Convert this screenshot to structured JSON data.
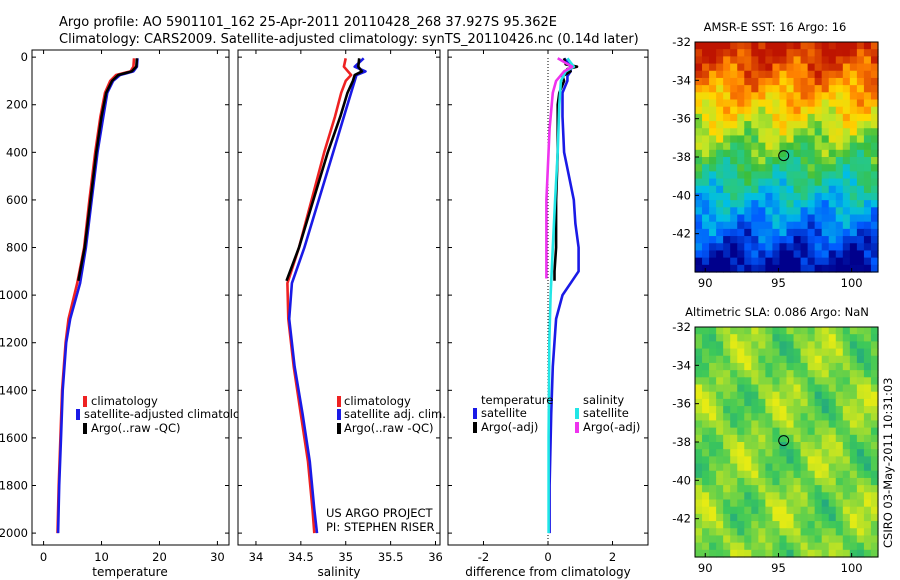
{
  "header": {
    "line1": "Argo profile: AO 5901101_162 25-Apr-2011 20110428_268 37.927S 95.362E",
    "line2": "Climatology: CARS2009. Satellite-adjusted climatology: synTS_20110426.nc (0.14d later)"
  },
  "footer": {
    "project": "US ARGO PROJECT",
    "pi": "PI: STEPHEN RISER",
    "stamp": "CSIRO 03-May-2011 10:31:03"
  },
  "colors": {
    "climatology": "#ee2222",
    "satellite": "#1a1ae6",
    "argo": "#000000",
    "salinity_sat": "#22e6e6",
    "salinity_argo": "#ee33ee"
  },
  "chart_data": [
    {
      "type": "line",
      "xlabel": "temperature",
      "ylabel": "",
      "xlim": [
        -2,
        32
      ],
      "ylim": [
        2050,
        -30
      ],
      "xticks": [
        0,
        10,
        20,
        30
      ],
      "yticks": [
        0,
        200,
        400,
        600,
        800,
        1000,
        1200,
        1400,
        1600,
        1800,
        2000
      ],
      "legend": {
        "placement": "lower-middle",
        "entries": [
          "climatology",
          "satellite-adjusted climatology",
          "Argo(..raw -QC)"
        ]
      },
      "series": [
        {
          "name": "climatology",
          "color": "#ee2222",
          "depth": [
            5,
            40,
            60,
            75,
            100,
            150,
            250,
            400,
            600,
            800,
            950,
            1100,
            1200,
            1400,
            1600,
            1800,
            2000
          ],
          "values": [
            15.6,
            15.5,
            15.0,
            12.5,
            11.5,
            10.6,
            9.8,
            8.9,
            7.9,
            7.0,
            5.8,
            4.3,
            3.8,
            3.2,
            2.9,
            2.6,
            2.4
          ]
        },
        {
          "name": "satellite-adjusted climatology",
          "color": "#1a1ae6",
          "depth": [
            5,
            40,
            60,
            75,
            100,
            150,
            250,
            400,
            600,
            800,
            950,
            1100,
            1200,
            1400,
            1600,
            1800,
            2000
          ],
          "values": [
            16.2,
            16.1,
            15.5,
            13.2,
            12.0,
            11.0,
            10.3,
            9.3,
            8.3,
            7.3,
            6.3,
            4.6,
            3.9,
            3.3,
            3.0,
            2.7,
            2.5
          ]
        },
        {
          "name": "Argo(..raw -QC)",
          "color": "#000000",
          "depth": [
            5,
            40,
            60,
            75,
            100,
            150,
            250,
            400,
            600,
            800,
            940
          ],
          "values": [
            16.1,
            16.0,
            15.2,
            12.9,
            11.8,
            10.8,
            10.0,
            9.1,
            8.1,
            7.1,
            6.0
          ]
        }
      ]
    },
    {
      "type": "line",
      "xlabel": "salinity",
      "ylabel": "",
      "xlim": [
        33.8,
        36.05
      ],
      "ylim": [
        2050,
        -30
      ],
      "xticks": [
        34,
        34.5,
        35,
        35.5,
        36
      ],
      "legend": {
        "placement": "lower-middle",
        "entries": [
          "climatology",
          "satellite adj. clim.",
          "Argo(..raw -QC)"
        ]
      },
      "series": [
        {
          "name": "climatology",
          "color": "#ee2222",
          "depth": [
            5,
            40,
            75,
            100,
            150,
            250,
            400,
            600,
            800,
            950,
            1100,
            1300,
            1500,
            1700,
            1900,
            2000
          ],
          "values": [
            35.0,
            34.98,
            35.06,
            35.0,
            34.95,
            34.88,
            34.76,
            34.62,
            34.48,
            34.35,
            34.36,
            34.42,
            34.5,
            34.58,
            34.63,
            34.65
          ]
        },
        {
          "name": "satellite adj. clim.",
          "color": "#1a1ae6",
          "depth": [
            5,
            40,
            60,
            75,
            100,
            150,
            250,
            400,
            600,
            800,
            950,
            1100,
            1300,
            1500,
            1700,
            1900,
            2000
          ],
          "values": [
            35.2,
            35.1,
            35.22,
            35.12,
            35.1,
            35.06,
            34.98,
            34.86,
            34.7,
            34.54,
            34.4,
            34.37,
            34.43,
            34.52,
            34.6,
            34.65,
            34.68
          ]
        },
        {
          "name": "Argo(..raw -QC)",
          "color": "#000000",
          "depth": [
            5,
            40,
            60,
            75,
            100,
            150,
            250,
            400,
            600,
            800,
            940
          ],
          "values": [
            35.15,
            35.14,
            35.18,
            35.1,
            35.08,
            35.02,
            34.94,
            34.8,
            34.64,
            34.48,
            34.34
          ]
        }
      ]
    },
    {
      "type": "line",
      "xlabel": "difference from climatology",
      "ylabel": "",
      "xlim": [
        -3.1,
        3.1
      ],
      "ylim": [
        2050,
        -30
      ],
      "xticks": [
        -2,
        0,
        2
      ],
      "legend": {
        "placement": "lower-middle",
        "groups": [
          "temperature",
          "salinity"
        ],
        "entries": [
          "satellite",
          "Argo(-adj)",
          "satellite",
          "Argo(-adj)"
        ]
      },
      "series": [
        {
          "name": "temperature satellite",
          "color": "#1a1ae6",
          "depth": [
            5,
            40,
            60,
            80,
            100,
            150,
            250,
            400,
            600,
            700,
            800,
            900,
            950,
            1000,
            1100,
            1300,
            1500,
            1800,
            2000
          ],
          "values": [
            0.5,
            0.7,
            0.7,
            0.6,
            0.6,
            0.45,
            0.45,
            0.5,
            0.8,
            0.85,
            0.95,
            0.95,
            0.7,
            0.45,
            0.25,
            0.15,
            0.1,
            0.05,
            0.05
          ]
        },
        {
          "name": "temperature Argo(-adj)",
          "color": "#000000",
          "depth": [
            5,
            30,
            40,
            50,
            60,
            80,
            100,
            150,
            200,
            400,
            600,
            800,
            900,
            940
          ],
          "values": [
            0.5,
            0.55,
            0.9,
            0.6,
            0.7,
            0.45,
            0.5,
            0.35,
            0.3,
            0.3,
            0.25,
            0.25,
            0.2,
            0.2
          ]
        },
        {
          "name": "salinity satellite",
          "color": "#22e6e6",
          "depth": [
            5,
            40,
            60,
            100,
            200,
            400,
            600,
            800,
            1000,
            1200,
            1400,
            1600,
            1800,
            2000
          ],
          "values": [
            0.6,
            0.8,
            0.55,
            0.4,
            0.35,
            0.3,
            0.22,
            0.15,
            0.08,
            0.04,
            0.03,
            0.02,
            0.02,
            0.02
          ]
        },
        {
          "name": "salinity Argo(-adj)",
          "color": "#ee33ee",
          "depth": [
            5,
            40,
            60,
            100,
            150,
            300,
            450,
            600,
            800,
            930
          ],
          "values": [
            0.3,
            0.75,
            0.5,
            0.25,
            0.15,
            0.05,
            0.0,
            -0.05,
            -0.05,
            -0.05
          ]
        }
      ]
    },
    {
      "type": "heatmap",
      "title": "AMSR-E SST: 16 Argo: 16",
      "xlim": [
        89.3,
        101.8
      ],
      "ylim": [
        -44,
        -32
      ],
      "xticks": [
        90,
        95,
        100
      ],
      "yticks": [
        -32,
        -34,
        -36,
        -38,
        -40,
        -42
      ],
      "marker": {
        "lon": 95.362,
        "lat": -37.927
      },
      "field": "latitudinal SST gradient: warm north (red) to cold south (blue)"
    },
    {
      "type": "heatmap",
      "title": "Altimetric SLA: 0.086 Argo: NaN",
      "xlim": [
        89.3,
        101.8
      ],
      "ylim": [
        -44,
        -32
      ],
      "xticks": [
        90,
        95,
        100
      ],
      "yticks": [
        -32,
        -34,
        -36,
        -38,
        -40,
        -42
      ],
      "marker": {
        "lon": 95.362,
        "lat": -37.927
      },
      "field": "sea level anomaly: yellow-green with green eddies"
    }
  ]
}
